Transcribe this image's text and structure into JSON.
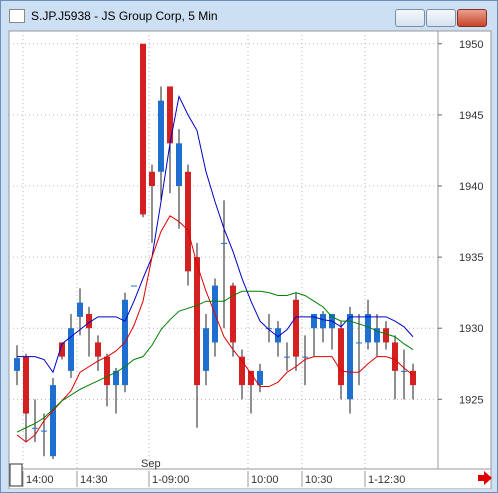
{
  "window": {
    "title": "S.JP.J5938 - JS Group Corp, 5 Min"
  },
  "chart_data": {
    "type": "candlestick",
    "categories": [
      null,
      "14:00",
      null,
      null,
      null,
      null,
      null,
      "14:30",
      null,
      null,
      null,
      null,
      null,
      null,
      null,
      "1-09:00",
      null,
      null,
      null,
      null,
      null,
      null,
      null,
      null,
      null,
      null,
      "10:00",
      null,
      null,
      null,
      null,
      null,
      "10:30",
      null,
      null,
      null,
      null,
      null,
      null,
      "1-12:30",
      null,
      null,
      null,
      null,
      null
    ],
    "month_label": "Sep",
    "open": [
      1927,
      1928,
      1923,
      1922.8,
      1921,
      1929,
      1927,
      1930.8,
      1931,
      1929,
      1928,
      1926,
      1926,
      1933,
      1950,
      1941,
      1941,
      1947,
      1940,
      1941,
      1935,
      1927,
      1929,
      1936,
      1933,
      1928,
      1927,
      1926,
      1930,
      1929,
      1928,
      1932,
      1928,
      1930,
      1930,
      1930,
      1930,
      1925,
      1929,
      1929,
      1929,
      1930,
      1929,
      1927,
      1927
    ],
    "high": [
      1928.8,
      1928.2,
      1925,
      1924,
      1926.5,
      1929,
      1931,
      1932.8,
      1931.5,
      1929.5,
      1928.2,
      1927.2,
      1932.5,
      1933,
      1950,
      1941.5,
      1947,
      1947,
      1944,
      1941.5,
      1936,
      1931,
      1933.5,
      1939,
      1933.2,
      1928.5,
      1927,
      1927.5,
      1931,
      1930.5,
      1929,
      1932.5,
      1929.5,
      1931,
      1931.2,
      1931,
      1930.5,
      1931.5,
      1931,
      1932,
      1931,
      1930.5,
      1929.5,
      1928.5,
      1927.5
    ],
    "low": [
      1926,
      1922,
      1922,
      1921,
      1920.8,
      1927.8,
      1926.5,
      1929.5,
      1928,
      1927,
      1924.5,
      1924,
      1925.5,
      1933,
      1937.8,
      1936,
      1939,
      1939.5,
      1937,
      1933,
      1923,
      1926,
      1928,
      1930,
      1928,
      1925,
      1924,
      1925.5,
      1929,
      1928,
      1927,
      1927,
      1926,
      1928,
      1929,
      1928.5,
      1925,
      1924,
      1926,
      1928.5,
      1928,
      1928.5,
      1925,
      1925,
      1925
    ],
    "close": [
      1927.9,
      1924,
      1923,
      1922.8,
      1926,
      1928,
      1930,
      1931.8,
      1930,
      1928,
      1926,
      1927,
      1932,
      1933,
      1938,
      1940,
      1946,
      1943,
      1943,
      1934,
      1926,
      1930,
      1933,
      1936,
      1929,
      1926,
      1926,
      1927,
      1930,
      1930,
      1928,
      1928,
      1928,
      1931,
      1931,
      1931,
      1926,
      1931,
      1929,
      1931,
      1930,
      1929,
      1927,
      1927,
      1926
    ],
    "up_color": "#1f6fd0",
    "down_color": "#d42020",
    "series": [
      {
        "color": "#0000c8",
        "values": [
          1928,
          1928,
          1928,
          1927.8,
          1926.9,
          1928.9,
          1929.4,
          1929.9,
          1930.4,
          1930.8,
          1930.8,
          1930.8,
          1930.5,
          1931.9,
          1933.5,
          1935,
          1938.9,
          1943,
          1946.3,
          1945,
          1943.9,
          1941,
          1938.9,
          1937,
          1935.4,
          1933.5,
          1931.9,
          1930.5,
          1929.9,
          1929.4,
          1929.9,
          1930.8,
          1930.8,
          1930.8,
          1930.6,
          1930.5,
          1930.1,
          1930.8,
          1930.8,
          1930.8,
          1930.8,
          1930.8,
          1930.5,
          1930.1,
          1929.4
        ]
      },
      {
        "color": "#e00000",
        "values": [
          1922.5,
          1922,
          1922.5,
          1923.5,
          1924.2,
          1924.9,
          1925.6,
          1926.9,
          1927.3,
          1927.7,
          1928,
          1928.4,
          1929,
          1930.2,
          1931.9,
          1935,
          1936.8,
          1937.9,
          1937.5,
          1936.9,
          1934.5,
          1932.6,
          1931,
          1929.4,
          1928.5,
          1927.7,
          1926.8,
          1925.9,
          1925.9,
          1926.2,
          1926.9,
          1927.3,
          1927.8,
          1928,
          1928,
          1928,
          1927,
          1926.9,
          1926.9,
          1927.5,
          1928,
          1928,
          1927.8,
          1927.2,
          1926.7
        ]
      },
      {
        "color": "#008000",
        "values": [
          1922.7,
          1923,
          1923.3,
          1923.7,
          1924.3,
          1924.9,
          1925.3,
          1925.7,
          1926,
          1926.3,
          1926.6,
          1926.9,
          1927.3,
          1927.8,
          1928,
          1928.8,
          1929.9,
          1930.6,
          1931.2,
          1931.4,
          1931.6,
          1931.9,
          1931.9,
          1931.9,
          1932.3,
          1932.6,
          1932.6,
          1932.6,
          1932.5,
          1932.3,
          1932.3,
          1932.5,
          1932.3,
          1931.9,
          1931.5,
          1930.8,
          1930.5,
          1930.5,
          1930.3,
          1930.1,
          1929.8,
          1929.6,
          1929.4,
          1928.9,
          1928.5
        ]
      }
    ],
    "ylim": [
      1920.1,
      1950.9
    ],
    "yticks": [
      1925,
      1930,
      1935,
      1940,
      1945,
      1950
    ],
    "grid": true
  }
}
